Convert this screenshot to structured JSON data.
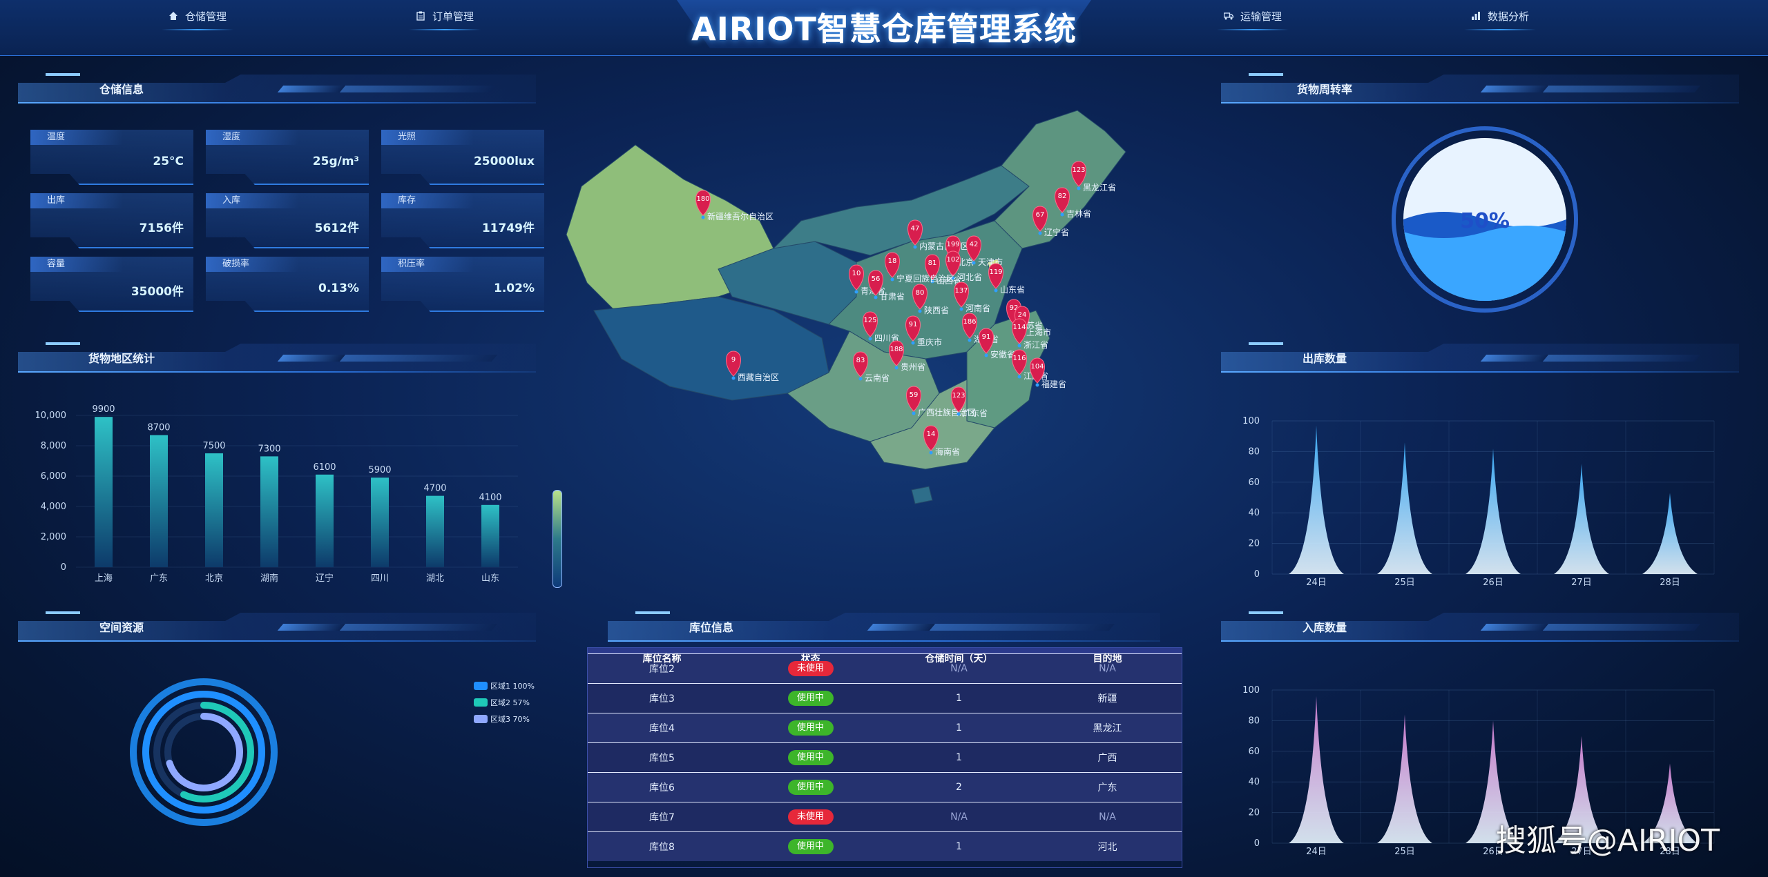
{
  "header": {
    "title": "AIRIOT智慧仓库管理系统",
    "nav_left": [
      {
        "label": "仓储管理",
        "icon": "home-icon"
      },
      {
        "label": "订单管理",
        "icon": "clipboard-icon"
      }
    ],
    "nav_right": [
      {
        "label": "运输管理",
        "icon": "truck-icon"
      },
      {
        "label": "数据分析",
        "icon": "bar-chart-icon"
      }
    ]
  },
  "storage_info": {
    "title": "仓储信息",
    "cards": [
      {
        "label": "温度",
        "value": "25°C"
      },
      {
        "label": "湿度",
        "value": "25g/m³"
      },
      {
        "label": "光照",
        "value": "25000lux"
      },
      {
        "label": "出库",
        "value": "7156件"
      },
      {
        "label": "入库",
        "value": "5612件"
      },
      {
        "label": "库存",
        "value": "11749件"
      },
      {
        "label": "容量",
        "value": "35000件"
      },
      {
        "label": "破损率",
        "value": "0.13%"
      },
      {
        "label": "积压率",
        "value": "1.02%"
      }
    ]
  },
  "region_stats": {
    "title": "货物地区统计",
    "chart_data": {
      "type": "bar",
      "categories": [
        "上海",
        "广东",
        "北京",
        "湖南",
        "辽宁",
        "四川",
        "湖北",
        "山东"
      ],
      "values": [
        9900,
        8700,
        7500,
        7300,
        6100,
        5900,
        4700,
        4100
      ],
      "yticks": [
        "10,000",
        "8,000",
        "6,000",
        "4,000",
        "2,000",
        "0"
      ],
      "ylim": [
        0,
        10000
      ]
    }
  },
  "space_resources": {
    "title": "空间资源",
    "chart_data": {
      "type": "pie",
      "categories": [
        "区域1",
        "区域2",
        "区域3"
      ],
      "values": [
        100,
        57,
        70
      ],
      "legend": [
        "区域1 100%",
        "区域2 57%",
        "区域3 70%"
      ],
      "colors": [
        "#1f8fff",
        "#1fc9b8",
        "#8fa8ff"
      ]
    }
  },
  "map": {
    "markers": [
      {
        "value": "180",
        "label": "新疆维吾尔自治区"
      },
      {
        "value": "9",
        "label": "西藏自治区"
      },
      {
        "value": "47",
        "label": "内蒙古自治区"
      },
      {
        "value": "123",
        "label": "黑龙江省"
      },
      {
        "value": "82",
        "label": "吉林省"
      },
      {
        "value": "67",
        "label": "辽宁省"
      },
      {
        "value": "199",
        "label": "北京"
      },
      {
        "value": "42",
        "label": "天津市"
      },
      {
        "value": "102",
        "label": "河北省"
      },
      {
        "value": "81",
        "label": "山西省"
      },
      {
        "value": "18",
        "label": "宁夏回族自治区"
      },
      {
        "value": "10",
        "label": "青海省"
      },
      {
        "value": "56",
        "label": "甘肃省"
      },
      {
        "value": "119",
        "label": "山东省"
      },
      {
        "value": "137",
        "label": "河南省"
      },
      {
        "value": "80",
        "label": "陕西省"
      },
      {
        "value": "92",
        "label": "江苏省"
      },
      {
        "value": "24",
        "label": "上海市"
      },
      {
        "value": "125",
        "label": "四川省"
      },
      {
        "value": "91",
        "label": "重庆市"
      },
      {
        "value": "186",
        "label": "湖北省"
      },
      {
        "value": "114",
        "label": "浙江省"
      },
      {
        "value": "91",
        "label": "安徽省"
      },
      {
        "value": "188",
        "label": "贵州省"
      },
      {
        "value": "83",
        "label": "云南省"
      },
      {
        "value": "116",
        "label": "江西省"
      },
      {
        "value": "104",
        "label": "福建省"
      },
      {
        "value": "59",
        "label": "广西壮族自治区"
      },
      {
        "value": "123",
        "label": "广东省"
      },
      {
        "value": "14",
        "label": "海南省"
      }
    ]
  },
  "slot_info": {
    "title": "库位信息",
    "columns": [
      "库位名称",
      "状态",
      "仓储时间（天）",
      "目的地"
    ],
    "rows": [
      {
        "name": "库位2",
        "status": "未使用",
        "days": "N/A",
        "dest": "N/A",
        "used": false
      },
      {
        "name": "库位3",
        "status": "使用中",
        "days": "1",
        "dest": "新疆",
        "used": true
      },
      {
        "name": "库位4",
        "status": "使用中",
        "days": "1",
        "dest": "黑龙江",
        "used": true
      },
      {
        "name": "库位5",
        "status": "使用中",
        "days": "1",
        "dest": "广西",
        "used": true
      },
      {
        "name": "库位6",
        "status": "使用中",
        "days": "2",
        "dest": "广东",
        "used": true
      },
      {
        "name": "库位7",
        "status": "未使用",
        "days": "N/A",
        "dest": "N/A",
        "used": false
      },
      {
        "name": "库位8",
        "status": "使用中",
        "days": "1",
        "dest": "河北",
        "used": true
      }
    ]
  },
  "turnover": {
    "title": "货物周转率",
    "value": "50%",
    "percent": 50
  },
  "outbound": {
    "title": "出库数量",
    "chart_data": {
      "type": "area",
      "categories": [
        "24日",
        "25日",
        "26日",
        "27日",
        "28日"
      ],
      "values": [
        97,
        86,
        82,
        72,
        53
      ],
      "yticks": [
        "100",
        "80",
        "60",
        "40",
        "20",
        "0"
      ],
      "ylim": [
        0,
        100
      ],
      "color": "#36a4f0"
    }
  },
  "inbound": {
    "title": "入库数量",
    "chart_data": {
      "type": "area",
      "categories": [
        "24日",
        "25日",
        "26日",
        "27日",
        "28日"
      ],
      "values": [
        96,
        84,
        80,
        70,
        52
      ],
      "yticks": [
        "100",
        "80",
        "60",
        "40",
        "20",
        "0"
      ],
      "ylim": [
        0,
        100
      ],
      "color": "#c477c9"
    }
  },
  "watermark": "搜狐号@AIRIOT"
}
